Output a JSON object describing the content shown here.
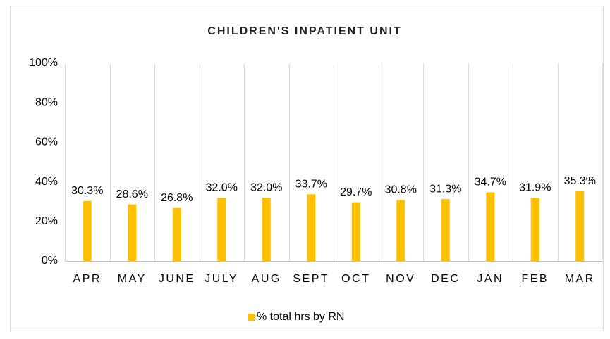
{
  "chart_data": {
    "type": "bar",
    "title": "CHILDREN'S INPATIENT UNIT",
    "categories": [
      "APR",
      "MAY",
      "JUNE",
      "JULY",
      "AUG",
      "SEPT",
      "OCT",
      "NOV",
      "DEC",
      "JAN",
      "FEB",
      "MAR"
    ],
    "series": [
      {
        "name": "% total hrs by RN",
        "color": "#ffc000",
        "values": [
          30.3,
          28.6,
          26.8,
          32.0,
          32.0,
          33.7,
          29.7,
          30.8,
          31.3,
          34.7,
          31.9,
          35.3
        ],
        "value_labels": [
          "30.3%",
          "28.6%",
          "26.8%",
          "32.0%",
          "32.0%",
          "33.7%",
          "29.7%",
          "30.8%",
          "31.3%",
          "34.7%",
          "31.9%",
          "35.3%"
        ]
      }
    ],
    "ylim": [
      0,
      100
    ],
    "yticks": [
      {
        "value": 0,
        "label": "0%"
      },
      {
        "value": 20,
        "label": "20%"
      },
      {
        "value": 40,
        "label": "40%"
      },
      {
        "value": 60,
        "label": "60%"
      },
      {
        "value": 80,
        "label": "80%"
      },
      {
        "value": 100,
        "label": "100%"
      }
    ],
    "grid": false,
    "legend": "bottom"
  }
}
